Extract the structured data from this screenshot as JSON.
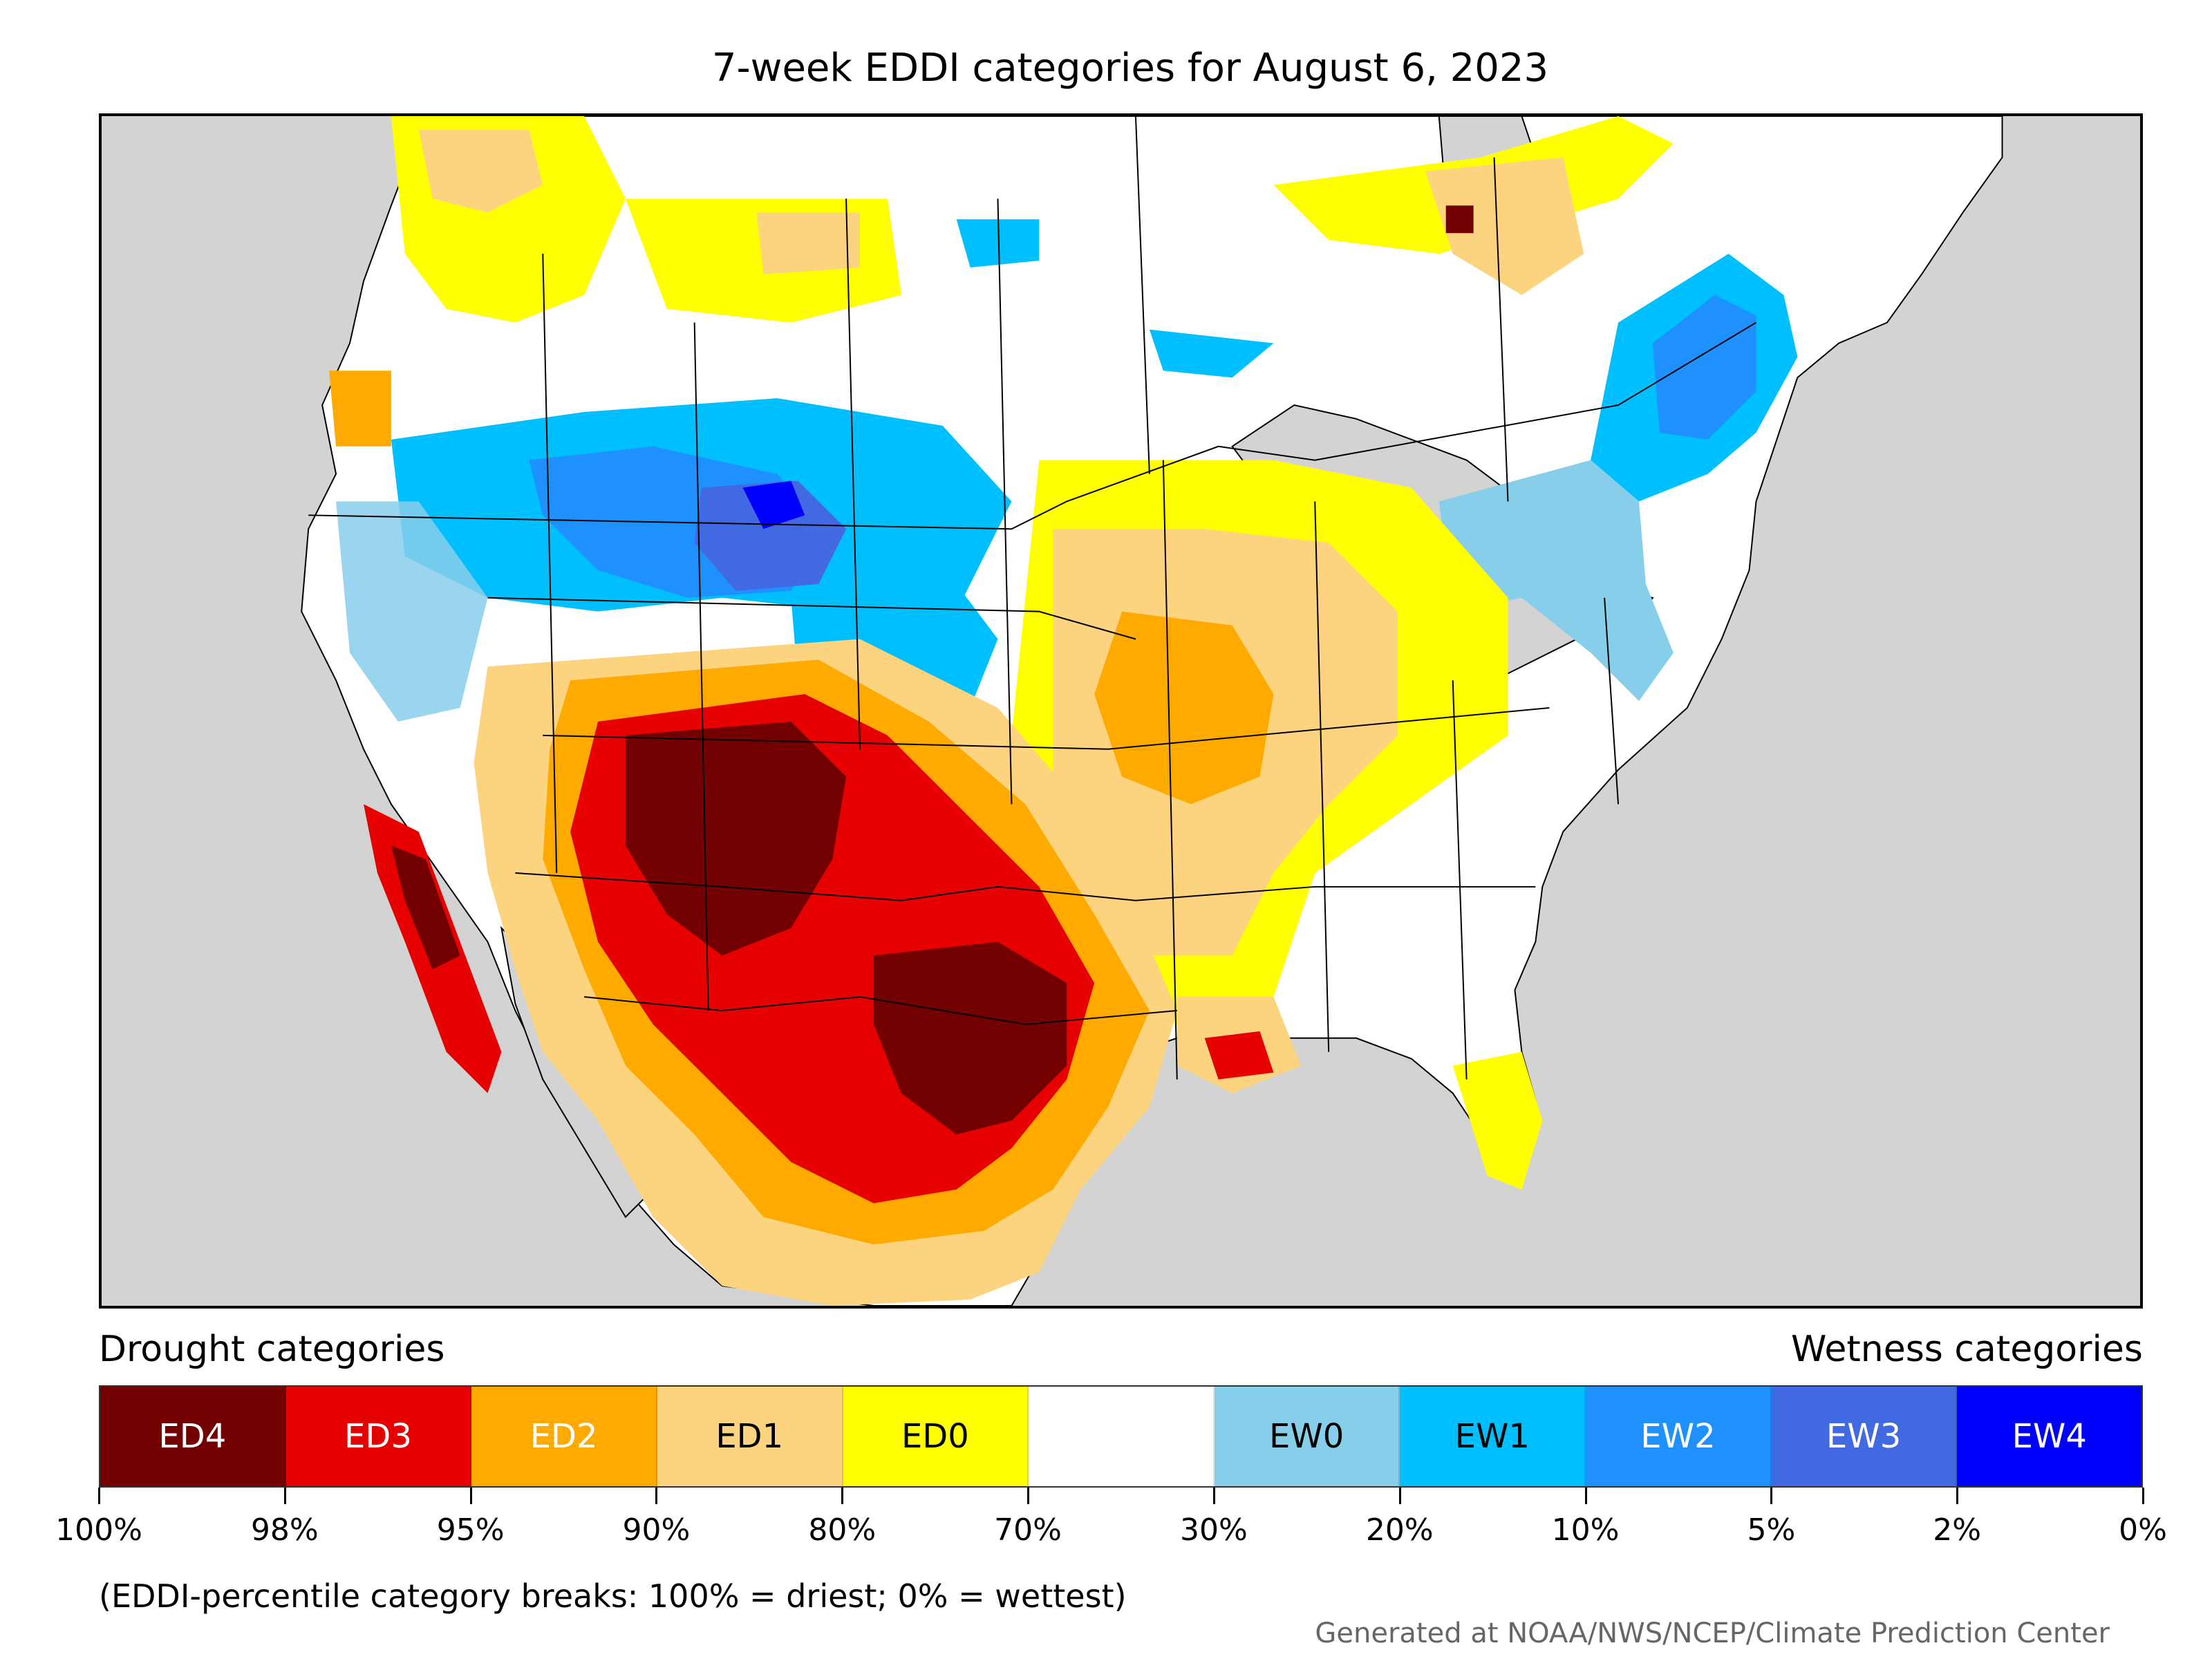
{
  "title": "7-week EDDI categories for August 6, 2023",
  "legend": {
    "drought_label": "Drought categories",
    "wetness_label": "Wetness categories",
    "categories": [
      {
        "label": "ED4",
        "color": "#730000",
        "text_color": "#ffffff"
      },
      {
        "label": "ED3",
        "color": "#e60000",
        "text_color": "#ffffff"
      },
      {
        "label": "ED2",
        "color": "#ffaa00",
        "text_color": "#ffffff"
      },
      {
        "label": "ED1",
        "color": "#fcd37f",
        "text_color": "#000000"
      },
      {
        "label": "ED0",
        "color": "#ffff00",
        "text_color": "#000000"
      },
      {
        "label": "",
        "color": "#ffffff",
        "text_color": "#000000"
      },
      {
        "label": "EW0",
        "color": "#87ceeb",
        "text_color": "#000000"
      },
      {
        "label": "EW1",
        "color": "#00bfff",
        "text_color": "#000000"
      },
      {
        "label": "EW2",
        "color": "#1e90ff",
        "text_color": "#ffffff"
      },
      {
        "label": "EW3",
        "color": "#4169e1",
        "text_color": "#ffffff"
      },
      {
        "label": "EW4",
        "color": "#0000ff",
        "text_color": "#ffffff"
      }
    ],
    "ticks": [
      "100%",
      "98%",
      "95%",
      "90%",
      "80%",
      "70%",
      "30%",
      "20%",
      "10%",
      "5%",
      "2%",
      "0%"
    ]
  },
  "footnote": "(EDDI-percentile category breaks: 100% = driest; 0% = wettest)",
  "credit": "Generated at NOAA/NWS/NCEP/Climate Prediction Center",
  "map": {
    "land_color": "#ffffff",
    "water_color": "#d3d3d3"
  }
}
